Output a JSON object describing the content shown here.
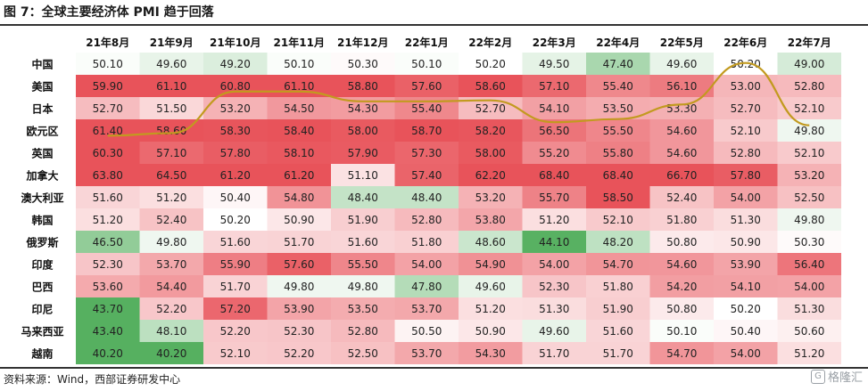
{
  "header": {
    "title": "图 7：全球主要经济体 PMI 趋于回落"
  },
  "footer": {
    "source": "资料来源：Wind，西部证券研发中心",
    "watermark": "格隆汇"
  },
  "colors": {
    "high": "#e8535a",
    "low": "#56b060",
    "mid": "#ffffff",
    "trend_line": "#c29a1f",
    "text": "#222222"
  },
  "chart_data": {
    "type": "heatmap",
    "title": "全球主要经济体 PMI 趋于回落",
    "columns": [
      "21年8月",
      "21年9月",
      "21年10月",
      "21年11月",
      "21年12月",
      "22年1月",
      "22年2月",
      "22年3月",
      "22年4月",
      "22年5月",
      "22年6月",
      "22年7月"
    ],
    "rows": [
      "中国",
      "美国",
      "日本",
      "欧元区",
      "英国",
      "加拿大",
      "澳大利亚",
      "韩国",
      "俄罗斯",
      "印度",
      "巴西",
      "印尼",
      "马来西亚",
      "越南"
    ],
    "values": [
      [
        50.1,
        49.6,
        49.2,
        50.1,
        50.3,
        50.1,
        50.2,
        49.5,
        47.4,
        49.6,
        50.2,
        49.0
      ],
      [
        59.9,
        61.1,
        60.8,
        61.1,
        58.8,
        57.6,
        58.6,
        57.1,
        55.4,
        56.1,
        53.0,
        52.8
      ],
      [
        52.7,
        51.5,
        53.2,
        54.5,
        54.3,
        55.4,
        52.7,
        54.1,
        53.5,
        53.3,
        52.7,
        52.1
      ],
      [
        61.4,
        58.6,
        58.3,
        58.4,
        58.0,
        58.7,
        58.2,
        56.5,
        55.5,
        54.6,
        52.1,
        49.8
      ],
      [
        60.3,
        57.1,
        57.8,
        58.1,
        57.9,
        57.3,
        58.0,
        55.2,
        55.8,
        54.6,
        52.8,
        52.1
      ],
      [
        63.8,
        64.5,
        61.2,
        61.2,
        51.1,
        57.4,
        62.2,
        68.4,
        68.4,
        66.7,
        57.8,
        53.2
      ],
      [
        51.6,
        51.2,
        50.4,
        54.8,
        48.4,
        48.4,
        53.2,
        55.7,
        58.5,
        52.4,
        54.0,
        52.5
      ],
      [
        51.2,
        52.4,
        50.2,
        50.9,
        51.9,
        52.8,
        53.8,
        51.2,
        52.1,
        51.8,
        51.3,
        49.8
      ],
      [
        46.5,
        49.8,
        51.6,
        51.7,
        51.6,
        51.8,
        48.6,
        44.1,
        48.2,
        50.8,
        50.9,
        50.3
      ],
      [
        52.3,
        53.7,
        55.9,
        57.6,
        55.5,
        54.0,
        54.9,
        54.0,
        54.7,
        54.6,
        53.9,
        56.4
      ],
      [
        53.6,
        54.4,
        51.7,
        49.8,
        49.8,
        47.8,
        49.6,
        52.3,
        51.8,
        54.2,
        54.1,
        54.0
      ],
      [
        43.7,
        52.2,
        57.2,
        53.9,
        53.5,
        53.7,
        51.2,
        51.3,
        51.9,
        50.8,
        50.2,
        51.3
      ],
      [
        43.4,
        48.1,
        52.2,
        52.3,
        52.8,
        50.5,
        50.9,
        49.6,
        51.6,
        50.1,
        50.4,
        50.6
      ],
      [
        40.2,
        40.2,
        52.1,
        52.2,
        52.5,
        53.7,
        54.3,
        51.7,
        51.7,
        54.7,
        54.0,
        51.2
      ]
    ],
    "trend_line": [
      56.0,
      56.5,
      64.5,
      64.5,
      62.6,
      62.6,
      62.8,
      58.6,
      59.2,
      62.0,
      70.0,
      58.0
    ]
  }
}
